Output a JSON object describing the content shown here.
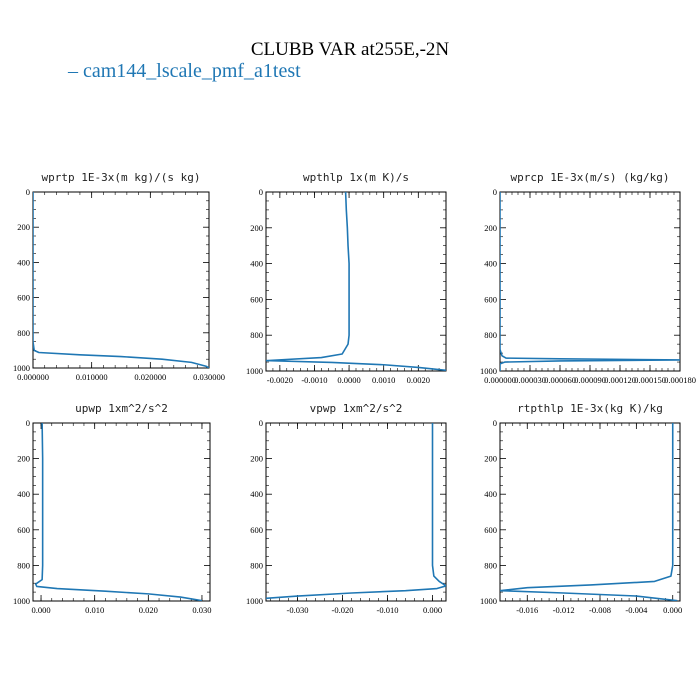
{
  "title": "CLUBB VAR at255E,-2N",
  "legend": {
    "label": "cam144_lscale_pmf_a1test",
    "color": "#1f77b4"
  },
  "chart_data": [
    {
      "type": "line",
      "title": "wprtp  1E-3x(m kg)/(s kg)",
      "xlim": [
        0,
        0.03
      ],
      "ylim": [
        1000,
        0
      ],
      "xticks": [
        "0.000000",
        "0.010000",
        "0.020000",
        "0.030000"
      ],
      "xtick_values": [
        0,
        0.01,
        0.02,
        0.03
      ],
      "yticks": [
        "0",
        "200",
        "400",
        "600",
        "800",
        "1000"
      ],
      "series": [
        {
          "points": [
            [
              0,
              0
            ],
            [
              0,
              300
            ],
            [
              0,
              600
            ],
            [
              0,
              850
            ],
            [
              0.0002,
              900
            ],
            [
              0.001,
              912
            ],
            [
              0.008,
              925
            ],
            [
              0.015,
              935
            ],
            [
              0.022,
              950
            ],
            [
              0.027,
              968
            ],
            [
              0.0295,
              990
            ],
            [
              0.03,
              1000
            ]
          ]
        }
      ]
    },
    {
      "type": "line",
      "title": "wpthlp  1x(m K)/s",
      "xlim": [
        -0.0024,
        0.0028
      ],
      "ylim": [
        1000,
        0
      ],
      "xticks": [
        "-0.0020",
        "-0.0010",
        "0.0000",
        "0.0010",
        "0.0020"
      ],
      "xtick_values": [
        -0.002,
        -0.001,
        0,
        0.001,
        0.002
      ],
      "yticks": [
        "0",
        "200",
        "400",
        "600",
        "800",
        "1000"
      ],
      "series": [
        {
          "points": [
            [
              -0.0001,
              0
            ],
            [
              -8e-05,
              100
            ],
            [
              -5e-05,
              200
            ],
            [
              -3e-05,
              300
            ],
            [
              0,
              400
            ],
            [
              0,
              600
            ],
            [
              0,
              800
            ],
            [
              -3e-05,
              850
            ],
            [
              -0.0002,
              905
            ],
            [
              -0.0008,
              925
            ],
            [
              -0.0024,
              942
            ],
            [
              -0.0005,
              952
            ],
            [
              0.001,
              965
            ],
            [
              0.002,
              980
            ],
            [
              0.0028,
              996
            ]
          ]
        }
      ]
    },
    {
      "type": "line",
      "title": "wprcp  1E-3x(m/s) (kg/kg)",
      "xlim": [
        0,
        0.00018
      ],
      "ylim": [
        1000,
        0
      ],
      "xticks": [
        "0.000000",
        "0.000030",
        "0.000060",
        "0.000090",
        "0.000120",
        "0.000150",
        "0.000180"
      ],
      "xtick_values": [
        0,
        3e-05,
        6e-05,
        9e-05,
        0.00012,
        0.00015,
        0.00018
      ],
      "yticks": [
        "0",
        "200",
        "400",
        "600",
        "800",
        "1000"
      ],
      "series": [
        {
          "points": [
            [
              0,
              0
            ],
            [
              0,
              600
            ],
            [
              0,
              880
            ],
            [
              2e-06,
              915
            ],
            [
              6e-06,
              928
            ],
            [
              6e-05,
              932
            ],
            [
              0.00018,
              938
            ],
            [
              6e-05,
              944
            ],
            [
              5e-06,
              950
            ],
            [
              0,
              960
            ],
            [
              0,
              1000
            ]
          ]
        }
      ]
    },
    {
      "type": "line",
      "title": "upwp  1xm^2/s^2",
      "xlim": [
        -0.0015,
        0.0315
      ],
      "ylim": [
        1000,
        0
      ],
      "xticks": [
        "0.000",
        "0.010",
        "0.020",
        "0.030"
      ],
      "xtick_values": [
        0,
        0.01,
        0.02,
        0.03
      ],
      "yticks": [
        "0",
        "200",
        "400",
        "600",
        "800",
        "1000"
      ],
      "series": [
        {
          "points": [
            [
              0.0002,
              0
            ],
            [
              0.0003,
              200
            ],
            [
              0.0003,
              400
            ],
            [
              0.0003,
              600
            ],
            [
              0.0003,
              800
            ],
            [
              0.0002,
              880
            ],
            [
              -0.001,
              905
            ],
            [
              -0.0008,
              918
            ],
            [
              0.003,
              930
            ],
            [
              0.012,
              945
            ],
            [
              0.02,
              960
            ],
            [
              0.026,
              978
            ],
            [
              0.03,
              998
            ]
          ]
        }
      ]
    },
    {
      "type": "line",
      "title": "vpwp  1xm^2/s^2",
      "xlim": [
        -0.037,
        0.003
      ],
      "ylim": [
        1000,
        0
      ],
      "xticks": [
        "-0.030",
        "-0.020",
        "-0.010",
        "0.000"
      ],
      "xtick_values": [
        -0.03,
        -0.02,
        -0.01,
        0
      ],
      "yticks": [
        "0",
        "200",
        "400",
        "600",
        "800",
        "1000"
      ],
      "series": [
        {
          "points": [
            [
              0,
              0
            ],
            [
              0,
              200
            ],
            [
              0,
              400
            ],
            [
              0,
              600
            ],
            [
              0,
              800
            ],
            [
              0.0003,
              860
            ],
            [
              0.0015,
              890
            ],
            [
              0.003,
              915
            ],
            [
              0.001,
              930
            ],
            [
              -0.006,
              942
            ],
            [
              -0.018,
              955
            ],
            [
              -0.03,
              972
            ],
            [
              -0.037,
              985
            ]
          ]
        }
      ]
    },
    {
      "type": "line",
      "title": "rtpthlp  1E-3x(kg K)/kg",
      "xlim": [
        -0.019,
        0.0008
      ],
      "ylim": [
        1000,
        0
      ],
      "xticks": [
        "-0.016",
        "-0.012",
        "-0.008",
        "-0.004",
        "0.000"
      ],
      "xtick_values": [
        -0.016,
        -0.012,
        -0.008,
        -0.004,
        0
      ],
      "yticks": [
        "0",
        "200",
        "400",
        "600",
        "800",
        "1000"
      ],
      "series": [
        {
          "points": [
            [
              0,
              0
            ],
            [
              0,
              200
            ],
            [
              0,
              400
            ],
            [
              0,
              600
            ],
            [
              0,
              800
            ],
            [
              -0.0002,
              860
            ],
            [
              -0.002,
              890
            ],
            [
              -0.009,
              910
            ],
            [
              -0.016,
              925
            ],
            [
              -0.019,
              942
            ],
            [
              -0.012,
              955
            ],
            [
              -0.004,
              972
            ],
            [
              0.0005,
              998
            ]
          ]
        }
      ]
    }
  ]
}
